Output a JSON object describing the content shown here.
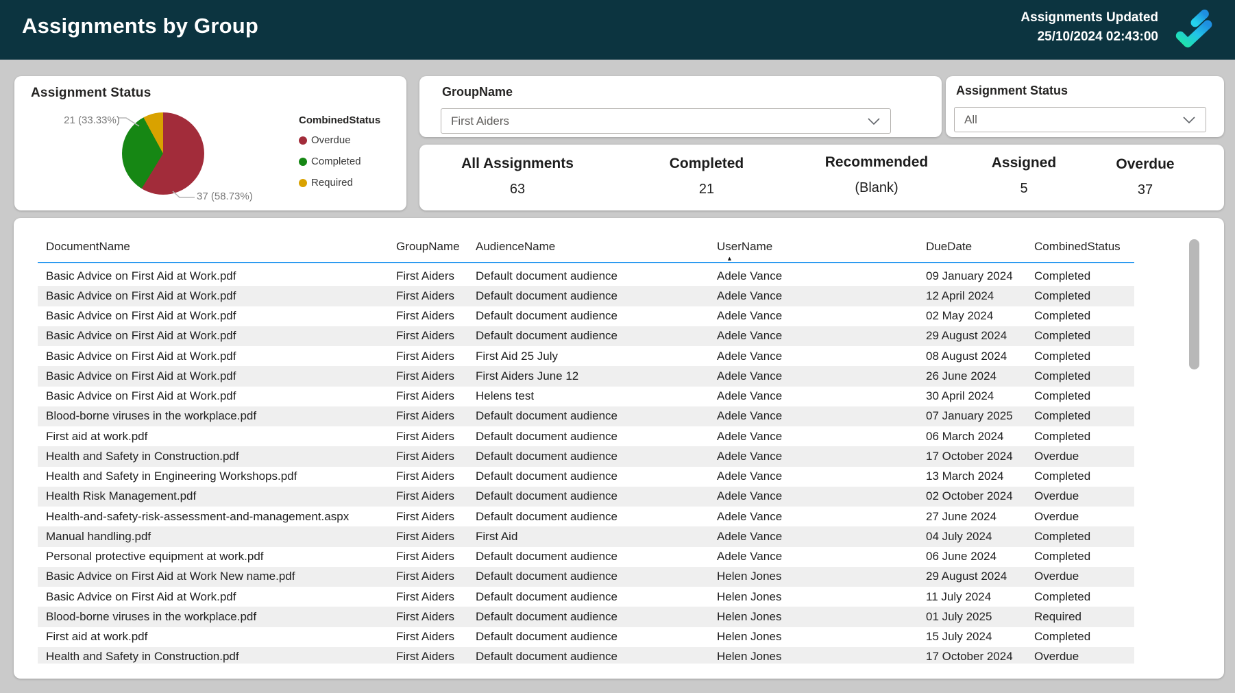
{
  "header": {
    "title": "Assignments by Group",
    "updated_label": "Assignments Updated",
    "updated_value": "25/10/2024 02:43:00"
  },
  "filters": {
    "group": {
      "label": "GroupName",
      "value": "First Aiders"
    },
    "status": {
      "label": "Assignment Status",
      "value": "All"
    }
  },
  "kpis": [
    {
      "label": "All Assignments",
      "value": "63"
    },
    {
      "label": "Completed",
      "value": "21"
    },
    {
      "label": "Recommended",
      "value": "(Blank)"
    },
    {
      "label": "Assigned",
      "value": "5"
    },
    {
      "label": "Overdue",
      "value": "37"
    }
  ],
  "chart_data": {
    "type": "pie",
    "title": "Assignment Status",
    "legend_title": "CombinedStatus",
    "legend_position": "right",
    "slices": [
      {
        "label": "Overdue",
        "value": 37,
        "pct": 58.73,
        "color": "#A22C3A"
      },
      {
        "label": "Completed",
        "value": 21,
        "pct": 33.33,
        "color": "#168714"
      },
      {
        "label": "Required",
        "value": 5,
        "pct": 7.94,
        "color": "#D9A200"
      }
    ],
    "callouts": [
      "21 (33.33%)",
      "37 (58.73%)"
    ],
    "start_angle_deg": 0
  },
  "table": {
    "columns": [
      "DocumentName",
      "GroupName",
      "AudienceName",
      "UserName",
      "DueDate",
      "CombinedStatus"
    ],
    "sorted_column": "UserName",
    "sort_direction": "ascending",
    "rows": [
      [
        "Basic Advice on First Aid at Work.pdf",
        "First Aiders",
        "Default document audience",
        "Adele Vance",
        "09 January 2024",
        "Completed"
      ],
      [
        "Basic Advice on First Aid at Work.pdf",
        "First Aiders",
        "Default document audience",
        "Adele Vance",
        "12 April 2024",
        "Completed"
      ],
      [
        "Basic Advice on First Aid at Work.pdf",
        "First Aiders",
        "Default document audience",
        "Adele Vance",
        "02 May 2024",
        "Completed"
      ],
      [
        "Basic Advice on First Aid at Work.pdf",
        "First Aiders",
        "Default document audience",
        "Adele Vance",
        "29 August 2024",
        "Completed"
      ],
      [
        "Basic Advice on First Aid at Work.pdf",
        "First Aiders",
        "First Aid 25 July",
        "Adele Vance",
        "08 August 2024",
        "Completed"
      ],
      [
        "Basic Advice on First Aid at Work.pdf",
        "First Aiders",
        "First Aiders June 12",
        "Adele Vance",
        "26 June 2024",
        "Completed"
      ],
      [
        "Basic Advice on First Aid at Work.pdf",
        "First Aiders",
        "Helens test",
        "Adele Vance",
        "30 April 2024",
        "Completed"
      ],
      [
        "Blood-borne viruses in the workplace.pdf",
        "First Aiders",
        "Default document audience",
        "Adele Vance",
        "07 January 2025",
        "Completed"
      ],
      [
        "First aid at work.pdf",
        "First Aiders",
        "Default document audience",
        "Adele Vance",
        "06 March 2024",
        "Completed"
      ],
      [
        "Health and Safety in Construction.pdf",
        "First Aiders",
        "Default document audience",
        "Adele Vance",
        "17 October 2024",
        "Overdue"
      ],
      [
        "Health and Safety in Engineering Workshops.pdf",
        "First Aiders",
        "Default document audience",
        "Adele Vance",
        "13 March 2024",
        "Completed"
      ],
      [
        "Health Risk Management.pdf",
        "First Aiders",
        "Default document audience",
        "Adele Vance",
        "02 October 2024",
        "Overdue"
      ],
      [
        "Health-and-safety-risk-assessment-and-management.aspx",
        "First Aiders",
        "Default document audience",
        "Adele Vance",
        "27 June 2024",
        "Overdue"
      ],
      [
        "Manual handling.pdf",
        "First Aiders",
        "First Aid",
        "Adele Vance",
        "04 July 2024",
        "Completed"
      ],
      [
        "Personal protective equipment at work.pdf",
        "First Aiders",
        "Default document audience",
        "Adele Vance",
        "06 June 2024",
        "Completed"
      ],
      [
        "Basic Advice on First Aid at Work New name.pdf",
        "First Aiders",
        "Default document audience",
        "Helen Jones",
        "29 August 2024",
        "Overdue"
      ],
      [
        "Basic Advice on First Aid at Work.pdf",
        "First Aiders",
        "Default document audience",
        "Helen Jones",
        "11 July 2024",
        "Completed"
      ],
      [
        "Blood-borne viruses in the workplace.pdf",
        "First Aiders",
        "Default document audience",
        "Helen Jones",
        "01 July 2025",
        "Required"
      ],
      [
        "First aid at work.pdf",
        "First Aiders",
        "Default document audience",
        "Helen Jones",
        "15 July 2024",
        "Completed"
      ],
      [
        "Health and Safety in Construction.pdf",
        "First Aiders",
        "Default document audience",
        "Helen Jones",
        "17 October 2024",
        "Overdue"
      ]
    ]
  },
  "colors": {
    "header_bg": "#0C3440",
    "page_bg": "#CACACA",
    "table_header_underline": "#2E9BF0",
    "row_stripe": "#EFEFEF",
    "scrollbar_thumb": "#B8B8B8",
    "pie_overdue": "#A22C3A",
    "pie_completed": "#168714",
    "pie_required": "#D9A200",
    "logo_green": "#1FE5A8",
    "logo_cyan": "#22C3E8",
    "logo_blue": "#1E8FE0"
  }
}
